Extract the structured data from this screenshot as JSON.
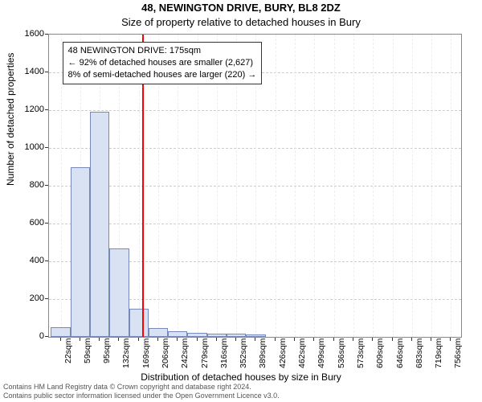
{
  "title": "48, NEWINGTON DRIVE, BURY, BL8 2DZ",
  "subtitle": "Size of property relative to detached houses in Bury",
  "y_axis_label": "Number of detached properties",
  "x_axis_label": "Distribution of detached houses by size in Bury",
  "chart": {
    "type": "histogram",
    "background_color": "#ffffff",
    "grid_color_h": "#cccccc",
    "grid_color_v": "#eeeeee",
    "bar_fill": "#d9e2f3",
    "bar_border": "#7788bb",
    "xlim": [
      0,
      775
    ],
    "ylim": [
      0,
      1600
    ],
    "ytick_step": 200,
    "xticks": [
      22,
      59,
      95,
      132,
      169,
      206,
      242,
      279,
      316,
      352,
      389,
      426,
      462,
      499,
      536,
      573,
      609,
      646,
      683,
      719,
      756
    ],
    "xtick_suffix": "sqm",
    "bar_width_data": 36.7,
    "bins_left_edge": 3.65,
    "values": [
      50,
      900,
      1190,
      470,
      150,
      45,
      30,
      22,
      18,
      15,
      12,
      0,
      0,
      0,
      0,
      0,
      0,
      0,
      0,
      0,
      0
    ]
  },
  "reference": {
    "value": 175,
    "color": "#ff0000"
  },
  "annotation": {
    "line1": "48 NEWINGTON DRIVE: 175sqm",
    "line2": "← 92% of detached houses are smaller (2,627)",
    "line3": "8% of semi-detached houses are larger (220) →",
    "top_data": 1560,
    "left_data": 25
  },
  "footer_line1": "Contains HM Land Registry data © Crown copyright and database right 2024.",
  "footer_line2": "Contains public sector information licensed under the Open Government Licence v3.0."
}
